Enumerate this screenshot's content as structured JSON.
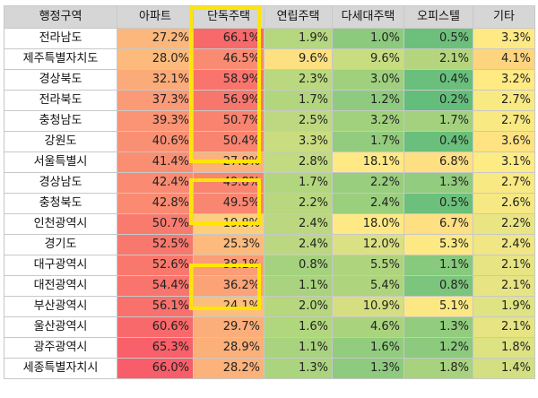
{
  "headers": [
    "행정구역",
    "아파트",
    "단독주택",
    "연립주택",
    "다세대주택",
    "오피스텔",
    "기타"
  ],
  "rows": [
    {
      "region": "전라남도",
      "cells": [
        {
          "v": "27.2%",
          "c": "#fcb87c"
        },
        {
          "v": "66.1%",
          "c": "#f8696b"
        },
        {
          "v": "1.9%",
          "c": "#b5d77e"
        },
        {
          "v": "1.0%",
          "c": "#8cca7e"
        },
        {
          "v": "0.5%",
          "c": "#6cc07c"
        },
        {
          "v": "3.3%",
          "c": "#ffe984"
        }
      ]
    },
    {
      "region": "제주특별자치도",
      "cells": [
        {
          "v": "28.0%",
          "c": "#fcbb7d"
        },
        {
          "v": "46.5%",
          "c": "#fa8b73"
        },
        {
          "v": "9.6%",
          "c": "#fde082"
        },
        {
          "v": "9.6%",
          "c": "#c7dd80"
        },
        {
          "v": "2.1%",
          "c": "#b4d57e"
        },
        {
          "v": "4.1%",
          "c": "#fed57f"
        }
      ]
    },
    {
      "region": "경상북도",
      "cells": [
        {
          "v": "32.1%",
          "c": "#fbab79"
        },
        {
          "v": "58.9%",
          "c": "#f9746d"
        },
        {
          "v": "2.3%",
          "c": "#bad87f"
        },
        {
          "v": "3.0%",
          "c": "#a0d07e"
        },
        {
          "v": "0.4%",
          "c": "#69bf7b"
        },
        {
          "v": "3.2%",
          "c": "#ffea84"
        }
      ]
    },
    {
      "region": "전라북도",
      "cells": [
        {
          "v": "37.3%",
          "c": "#fb9a76"
        },
        {
          "v": "56.9%",
          "c": "#f8776d"
        },
        {
          "v": "1.7%",
          "c": "#b2d67e"
        },
        {
          "v": "1.2%",
          "c": "#8ecb7e"
        },
        {
          "v": "0.2%",
          "c": "#63be7b"
        },
        {
          "v": "2.7%",
          "c": "#f9e983"
        }
      ]
    },
    {
      "region": "충청남도",
      "cells": [
        {
          "v": "39.3%",
          "c": "#fa9474"
        },
        {
          "v": "50.7%",
          "c": "#f9836f"
        },
        {
          "v": "2.5%",
          "c": "#bdd880"
        },
        {
          "v": "3.2%",
          "c": "#a2d17e"
        },
        {
          "v": "1.7%",
          "c": "#a3d17e"
        },
        {
          "v": "2.7%",
          "c": "#f9e983"
        }
      ]
    },
    {
      "region": "강원도",
      "cells": [
        {
          "v": "40.6%",
          "c": "#fa9073"
        },
        {
          "v": "50.4%",
          "c": "#f9846f"
        },
        {
          "v": "3.3%",
          "c": "#c9dc80"
        },
        {
          "v": "1.7%",
          "c": "#93cc7e"
        },
        {
          "v": "0.4%",
          "c": "#69bf7b"
        },
        {
          "v": "3.6%",
          "c": "#ffe383"
        }
      ]
    },
    {
      "region": "서울특별시",
      "cells": [
        {
          "v": "41.4%",
          "c": "#fa8e72"
        },
        {
          "v": "27.8%",
          "c": "#fcb27a"
        },
        {
          "v": "2.8%",
          "c": "#c2da80"
        },
        {
          "v": "18.1%",
          "c": "#fee984"
        },
        {
          "v": "6.8%",
          "c": "#fedf82"
        },
        {
          "v": "3.1%",
          "c": "#fdeb84"
        }
      ]
    },
    {
      "region": "경상남도",
      "cells": [
        {
          "v": "42.4%",
          "c": "#fa8b72"
        },
        {
          "v": "49.8%",
          "c": "#f98570"
        },
        {
          "v": "1.7%",
          "c": "#b2d67e"
        },
        {
          "v": "2.2%",
          "c": "#98ce7e"
        },
        {
          "v": "1.3%",
          "c": "#92cc7e"
        },
        {
          "v": "2.7%",
          "c": "#f9e983"
        }
      ]
    },
    {
      "region": "충청북도",
      "cells": [
        {
          "v": "42.8%",
          "c": "#fa8a72"
        },
        {
          "v": "49.5%",
          "c": "#f98670"
        },
        {
          "v": "2.2%",
          "c": "#b8d77e"
        },
        {
          "v": "2.4%",
          "c": "#9acf7e"
        },
        {
          "v": "0.5%",
          "c": "#6cc07c"
        },
        {
          "v": "2.6%",
          "c": "#f6e883"
        }
      ]
    },
    {
      "region": "인천광역시",
      "cells": [
        {
          "v": "50.7%",
          "c": "#f97b6e"
        },
        {
          "v": "19.8%",
          "c": "#fdce7e"
        },
        {
          "v": "2.4%",
          "c": "#bbd880"
        },
        {
          "v": "18.0%",
          "c": "#fee984"
        },
        {
          "v": "6.7%",
          "c": "#fedf82"
        },
        {
          "v": "2.2%",
          "c": "#eae583"
        }
      ]
    },
    {
      "region": "경기도",
      "cells": [
        {
          "v": "52.5%",
          "c": "#f9786d"
        },
        {
          "v": "25.3%",
          "c": "#fcbb7c"
        },
        {
          "v": "2.4%",
          "c": "#bbd880"
        },
        {
          "v": "12.0%",
          "c": "#dbe182"
        },
        {
          "v": "5.3%",
          "c": "#fce983"
        },
        {
          "v": "2.4%",
          "c": "#f0e683"
        }
      ]
    },
    {
      "region": "대구광역시",
      "cells": [
        {
          "v": "52.6%",
          "c": "#f9786d"
        },
        {
          "v": "38.1%",
          "c": "#fb9d76"
        },
        {
          "v": "0.8%",
          "c": "#a5d27e"
        },
        {
          "v": "5.5%",
          "c": "#afd47e"
        },
        {
          "v": "1.1%",
          "c": "#87c97d"
        },
        {
          "v": "2.1%",
          "c": "#e6e483"
        }
      ]
    },
    {
      "region": "대전광역시",
      "cells": [
        {
          "v": "54.4%",
          "c": "#f9746c"
        },
        {
          "v": "36.2%",
          "c": "#fba277"
        },
        {
          "v": "1.1%",
          "c": "#a9d37e"
        },
        {
          "v": "5.4%",
          "c": "#aed47e"
        },
        {
          "v": "0.8%",
          "c": "#7bc57c"
        },
        {
          "v": "2.1%",
          "c": "#e6e483"
        }
      ]
    },
    {
      "region": "부산광역시",
      "cells": [
        {
          "v": "56.1%",
          "c": "#f8716c"
        },
        {
          "v": "24.1%",
          "c": "#fcbe7d"
        },
        {
          "v": "2.0%",
          "c": "#b6d77e"
        },
        {
          "v": "10.9%",
          "c": "#d5df81"
        },
        {
          "v": "5.1%",
          "c": "#fbe883"
        },
        {
          "v": "1.9%",
          "c": "#e0e383"
        }
      ]
    },
    {
      "region": "울산광역시",
      "cells": [
        {
          "v": "60.6%",
          "c": "#f8696b"
        },
        {
          "v": "29.7%",
          "c": "#fbae79"
        },
        {
          "v": "1.6%",
          "c": "#b0d67e"
        },
        {
          "v": "4.6%",
          "c": "#aad37e"
        },
        {
          "v": "1.3%",
          "c": "#92cc7e"
        },
        {
          "v": "2.1%",
          "c": "#e6e483"
        }
      ]
    },
    {
      "region": "광주광역시",
      "cells": [
        {
          "v": "65.3%",
          "c": "#f8606a"
        },
        {
          "v": "28.9%",
          "c": "#fbb07a"
        },
        {
          "v": "1.1%",
          "c": "#a9d37e"
        },
        {
          "v": "1.6%",
          "c": "#92cc7e"
        },
        {
          "v": "1.2%",
          "c": "#8cca7e"
        },
        {
          "v": "1.8%",
          "c": "#dde283"
        }
      ]
    },
    {
      "region": "세종특별자치시",
      "cells": [
        {
          "v": "66.0%",
          "c": "#f85e69"
        },
        {
          "v": "28.2%",
          "c": "#fcb27a"
        },
        {
          "v": "1.3%",
          "c": "#abd47e"
        },
        {
          "v": "1.3%",
          "c": "#8ecb7e"
        },
        {
          "v": "1.8%",
          "c": "#a7d27e"
        },
        {
          "v": "1.4%",
          "c": "#d3df81"
        }
      ]
    }
  ],
  "highlight_color": "#ffe600"
}
